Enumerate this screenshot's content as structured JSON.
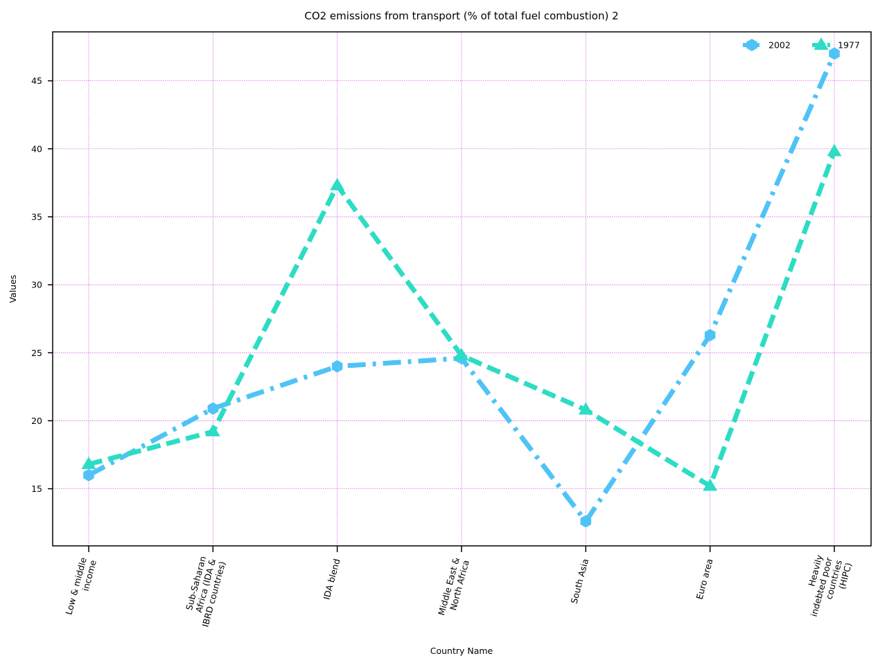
{
  "chart_data": {
    "type": "line",
    "title": "CO2 emissions from transport (% of total fuel combustion) 2",
    "xlabel": "Country Name",
    "ylabel": "Values",
    "categories": [
      [
        "Low & middle",
        "income"
      ],
      [
        "Sub-Saharan",
        "Africa (IDA &",
        "IBRD countries)"
      ],
      [
        "IDA blend"
      ],
      [
        "Middle East &",
        "North Africa"
      ],
      [
        "South Asia"
      ],
      [
        "Euro area"
      ],
      [
        "Heavily",
        "indebted poor",
        "countries",
        "(HIPC)"
      ]
    ],
    "yticks": [
      15,
      20,
      25,
      30,
      35,
      40,
      45
    ],
    "ylim": [
      10.8,
      48.6
    ],
    "grid": true,
    "legend_position": "top-right",
    "series": [
      {
        "name": "2002",
        "color": "#4fc3f7",
        "style": "dashdot",
        "marker": "hexagon",
        "values": [
          16.0,
          20.9,
          24.0,
          24.6,
          12.6,
          26.3,
          47.0
        ]
      },
      {
        "name": "1977",
        "color": "#2ddcc4",
        "style": "dashed",
        "marker": "triangle",
        "values": [
          16.8,
          19.2,
          37.3,
          24.8,
          20.8,
          15.2,
          39.8
        ]
      }
    ]
  }
}
